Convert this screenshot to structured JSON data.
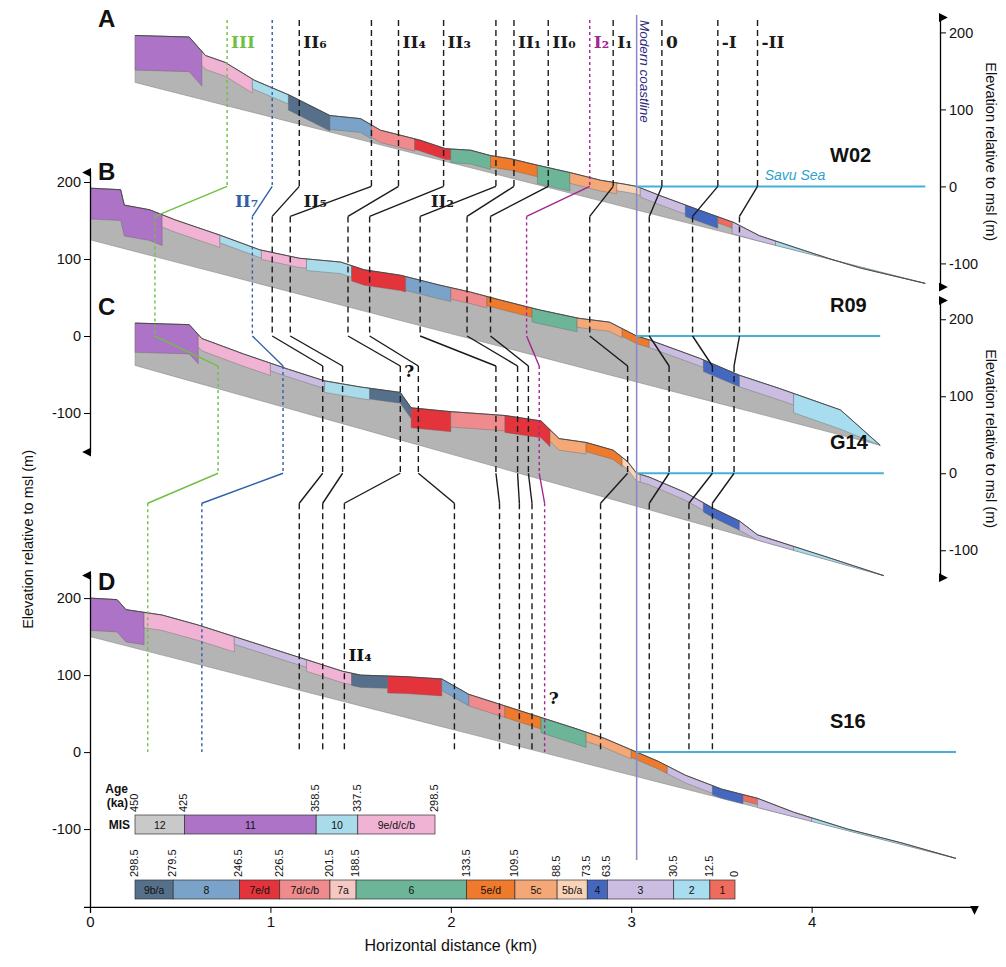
{
  "chart_data": {
    "type": "cross_section",
    "x_label": "Horizontal distance (km)",
    "xlim": [
      0,
      4.9
    ],
    "xticks": [
      0,
      1,
      2,
      3,
      4
    ],
    "y_label": "Elevation relative to msl (m)",
    "sea_level": 0,
    "sea_label": "Savu Sea",
    "coastline": {
      "label": "Modern coastline",
      "x": 3.03
    },
    "profiles": [
      {
        "letter": "A",
        "name": "W02",
        "axis": "right",
        "ylim": [
          -130,
          220
        ],
        "yticks": [
          -100,
          0,
          100,
          200
        ],
        "surface": {
          "x": [
            0.25,
            0.55,
            0.64,
            0.75,
            0.91,
            1.11,
            1.33,
            1.5,
            1.61,
            1.83,
            1.97,
            2.11,
            2.22,
            2.33,
            2.49,
            2.66,
            2.83,
            2.96,
            3.03,
            3.16,
            3.38,
            3.57,
            3.71,
            3.93,
            4.1,
            4.27,
            4.63
          ],
          "y": [
            196,
            194,
            170,
            161,
            138,
            118,
            92,
            88,
            73,
            60,
            49,
            47,
            40,
            36,
            27,
            18,
            8,
            3,
            0,
            -12,
            -31,
            -47,
            -64,
            -81,
            -94,
            -106,
            -126
          ]
        },
        "base": {
          "x": [
            0.25,
            4.63
          ],
          "y": [
            135,
            -126
          ]
        },
        "units": [
          {
            "stage": "11",
            "x0": 0.25,
            "x1": 0.62,
            "depth": 45
          },
          {
            "stage": "9e/d/c/b",
            "x0": 0.62,
            "x1": 0.9,
            "depth": 18
          },
          {
            "stage": "10",
            "x0": 0.9,
            "x1": 1.1,
            "depth": 12
          },
          {
            "stage": "9b/a",
            "x0": 1.1,
            "x1": 1.33,
            "depth": 20
          },
          {
            "stage": "8",
            "x0": 1.33,
            "x1": 1.56,
            "depth": 18
          },
          {
            "stage": "7d/c/b",
            "x0": 1.56,
            "x1": 1.8,
            "depth": 16
          },
          {
            "stage": "7e/d",
            "x0": 1.8,
            "x1": 2.0,
            "depth": 14
          },
          {
            "stage": "6",
            "x0": 2.0,
            "x1": 2.22,
            "depth": 18
          },
          {
            "stage": "5e/d",
            "x0": 2.22,
            "x1": 2.48,
            "depth": 15
          },
          {
            "stage": "6",
            "x0": 2.48,
            "x1": 2.66,
            "depth": 24
          },
          {
            "stage": "5c",
            "x0": 2.66,
            "x1": 2.92,
            "depth": 14
          },
          {
            "stage": "5b/a",
            "x0": 2.92,
            "x1": 3.05,
            "depth": 10
          },
          {
            "stage": "3",
            "x0": 3.05,
            "x1": 3.3,
            "depth": 12
          },
          {
            "stage": "4",
            "x0": 3.3,
            "x1": 3.48,
            "depth": 15
          },
          {
            "stage": "1",
            "x0": 3.48,
            "x1": 3.56,
            "depth": 8
          },
          {
            "stage": "3",
            "x0": 3.56,
            "x1": 3.8,
            "depth": 15
          },
          {
            "stage": "2",
            "x0": 3.8,
            "x1": 4.63,
            "depth": 22
          }
        ]
      },
      {
        "letter": "B",
        "name": "R09",
        "axis": "left",
        "ylim": [
          -150,
          213
        ],
        "yticks": [
          -100,
          0,
          100,
          200
        ],
        "surface": {
          "x": [
            0,
            0.17,
            0.19,
            0.33,
            0.47,
            0.72,
            0.94,
            1.16,
            1.39,
            1.52,
            1.72,
            1.94,
            2.11,
            2.27,
            2.49,
            2.71,
            2.88,
            3.03,
            3.1,
            3.38,
            3.6,
            3.82,
            4.16,
            4.38
          ],
          "y": [
            192,
            190,
            170,
            164,
            151,
            131,
            112,
            101,
            96,
            86,
            79,
            66,
            57,
            47,
            34,
            23,
            18,
            0,
            -5,
            -29,
            -51,
            -68,
            -96,
            -142
          ]
        },
        "base": {
          "x": [
            0,
            4.38
          ],
          "y": [
            125,
            -142
          ]
        },
        "units": [
          {
            "stage": "11",
            "x0": 0,
            "x1": 0.4,
            "depth": 40
          },
          {
            "stage": "9e/d/c/b",
            "x0": 0.4,
            "x1": 0.72,
            "depth": 16
          },
          {
            "stage": "10",
            "x0": 0.72,
            "x1": 0.95,
            "depth": 10
          },
          {
            "stage": "9e/d/c/b",
            "x0": 0.95,
            "x1": 1.2,
            "depth": 12
          },
          {
            "stage": "10",
            "x0": 1.2,
            "x1": 1.45,
            "depth": 15
          },
          {
            "stage": "7e/d",
            "x0": 1.45,
            "x1": 1.75,
            "depth": 20
          },
          {
            "stage": "8",
            "x0": 1.75,
            "x1": 2.0,
            "depth": 18
          },
          {
            "stage": "7d/c/b",
            "x0": 2.0,
            "x1": 2.2,
            "depth": 15
          },
          {
            "stage": "5e/d",
            "x0": 2.2,
            "x1": 2.45,
            "depth": 12
          },
          {
            "stage": "6",
            "x0": 2.45,
            "x1": 2.7,
            "depth": 18
          },
          {
            "stage": "5c",
            "x0": 2.7,
            "x1": 2.95,
            "depth": 12
          },
          {
            "stage": "5e/d",
            "x0": 2.95,
            "x1": 3.1,
            "depth": 10
          },
          {
            "stage": "3",
            "x0": 3.1,
            "x1": 3.4,
            "depth": 10
          },
          {
            "stage": "4",
            "x0": 3.4,
            "x1": 3.6,
            "depth": 15
          },
          {
            "stage": "3",
            "x0": 3.6,
            "x1": 3.9,
            "depth": 15
          },
          {
            "stage": "2",
            "x0": 3.9,
            "x1": 4.38,
            "depth": 25
          }
        ]
      },
      {
        "letter": "C",
        "name": "G14",
        "axis": "right",
        "ylim": [
          -135,
          225
        ],
        "yticks": [
          -100,
          0,
          100,
          200
        ],
        "surface": {
          "x": [
            0.25,
            0.55,
            0.62,
            0.85,
            1.1,
            1.3,
            1.5,
            1.72,
            1.78,
            2.0,
            2.3,
            2.5,
            2.6,
            2.75,
            2.9,
            2.98,
            3.03,
            3.1,
            3.3,
            3.45,
            3.6,
            3.7,
            3.9,
            4.1,
            4.4
          ],
          "y": [
            195,
            193,
            175,
            155,
            135,
            120,
            112,
            105,
            85,
            80,
            75,
            68,
            45,
            40,
            30,
            15,
            0,
            -5,
            -25,
            -45,
            -62,
            -80,
            -95,
            -110,
            -133
          ]
        },
        "base": {
          "x": [
            0.25,
            4.4
          ],
          "y": [
            140,
            -133
          ]
        },
        "units": [
          {
            "stage": "11",
            "x0": 0.25,
            "x1": 0.6,
            "depth": 38
          },
          {
            "stage": "9e/d/c/b",
            "x0": 0.6,
            "x1": 1.0,
            "depth": 16
          },
          {
            "stage": "3",
            "x0": 1.0,
            "x1": 1.3,
            "depth": 10
          },
          {
            "stage": "10",
            "x0": 1.3,
            "x1": 1.55,
            "depth": 15
          },
          {
            "stage": "9b/a",
            "x0": 1.55,
            "x1": 1.78,
            "depth": 14
          },
          {
            "stage": "7e/d",
            "x0": 1.78,
            "x1": 2.0,
            "depth": 26
          },
          {
            "stage": "7d/c/b",
            "x0": 2.0,
            "x1": 2.3,
            "depth": 20
          },
          {
            "stage": "7e/d",
            "x0": 2.3,
            "x1": 2.55,
            "depth": 22
          },
          {
            "stage": "5c",
            "x0": 2.55,
            "x1": 2.75,
            "depth": 15
          },
          {
            "stage": "5e/d",
            "x0": 2.75,
            "x1": 2.95,
            "depth": 12
          },
          {
            "stage": "5b/a",
            "x0": 2.95,
            "x1": 3.05,
            "depth": 10
          },
          {
            "stage": "3",
            "x0": 3.05,
            "x1": 3.4,
            "depth": 10
          },
          {
            "stage": "4",
            "x0": 3.4,
            "x1": 3.6,
            "depth": 12
          },
          {
            "stage": "3",
            "x0": 3.6,
            "x1": 3.9,
            "depth": 12
          },
          {
            "stage": "2",
            "x0": 3.9,
            "x1": 4.4,
            "depth": 25
          }
        ]
      },
      {
        "letter": "D",
        "name": "S16",
        "axis": "left",
        "ylim": [
          -201,
          230
        ],
        "yticks": [
          -100,
          0,
          100,
          200
        ],
        "surface": {
          "x": [
            0,
            0.15,
            0.2,
            0.4,
            0.6,
            0.8,
            1.0,
            1.2,
            1.4,
            1.5,
            1.75,
            1.95,
            2.1,
            2.3,
            2.5,
            2.7,
            2.85,
            3.03,
            3.15,
            3.3,
            3.5,
            3.7,
            3.9,
            4.2,
            4.5,
            4.8
          ],
          "y": [
            200,
            198,
            185,
            178,
            165,
            150,
            135,
            120,
            105,
            100,
            98,
            95,
            75,
            60,
            45,
            30,
            18,
            0,
            -12,
            -30,
            -48,
            -60,
            -78,
            -100,
            -118,
            -138
          ]
        },
        "base": {
          "x": [
            0,
            4.8
          ],
          "y": [
            150,
            -138
          ]
        },
        "units": [
          {
            "stage": "11",
            "x0": 0,
            "x1": 0.3,
            "depth": 42
          },
          {
            "stage": "9e/d/c/b",
            "x0": 0.3,
            "x1": 0.8,
            "depth": 20
          },
          {
            "stage": "3",
            "x0": 0.8,
            "x1": 1.2,
            "depth": 10
          },
          {
            "stage": "9e/d/c/b",
            "x0": 1.2,
            "x1": 1.45,
            "depth": 15
          },
          {
            "stage": "9b/a",
            "x0": 1.45,
            "x1": 1.65,
            "depth": 16
          },
          {
            "stage": "7e/d",
            "x0": 1.65,
            "x1": 1.95,
            "depth": 22
          },
          {
            "stage": "8",
            "x0": 1.95,
            "x1": 2.1,
            "depth": 15
          },
          {
            "stage": "7d/c/b",
            "x0": 2.1,
            "x1": 2.3,
            "depth": 15
          },
          {
            "stage": "5e/d",
            "x0": 2.3,
            "x1": 2.5,
            "depth": 15
          },
          {
            "stage": "6",
            "x0": 2.5,
            "x1": 2.75,
            "depth": 20
          },
          {
            "stage": "5c",
            "x0": 2.75,
            "x1": 3.0,
            "depth": 12
          },
          {
            "stage": "5e/d",
            "x0": 3.0,
            "x1": 3.2,
            "depth": 10
          },
          {
            "stage": "3",
            "x0": 3.2,
            "x1": 3.45,
            "depth": 10
          },
          {
            "stage": "4",
            "x0": 3.45,
            "x1": 3.62,
            "depth": 12
          },
          {
            "stage": "1",
            "x0": 3.62,
            "x1": 3.7,
            "depth": 8
          },
          {
            "stage": "3",
            "x0": 3.7,
            "x1": 4.0,
            "depth": 12
          },
          {
            "stage": "2",
            "x0": 4.0,
            "x1": 4.8,
            "depth": 25
          }
        ]
      }
    ],
    "terrace_lines": [
      {
        "name": "III",
        "color": "#6ec043",
        "line_style": "dotted",
        "x": [
          0.76,
          0.36,
          0.71,
          0.32
        ]
      },
      {
        "name": "II₇",
        "color": "#2f5fa8",
        "line_style": "dotted",
        "x": [
          1.01,
          0.9,
          1.07,
          0.62
        ]
      },
      {
        "name": "II₆",
        "color": "#1a1a1a",
        "line_style": "dashed",
        "x": [
          1.16,
          1.01,
          1.29,
          1.16
        ]
      },
      {
        "name": "II₅",
        "color": "#1a1a1a",
        "line_style": "dashed",
        "x": [
          1.56,
          1.11,
          1.4,
          1.29
        ]
      },
      {
        "name": "II₄",
        "color": "#1a1a1a",
        "line_style": "dashed",
        "x": [
          1.71,
          1.43,
          1.72,
          1.41
        ]
      },
      {
        "name": "II₃",
        "color": "#1a1a1a",
        "line_style": "dashed",
        "x": [
          1.96,
          1.55,
          1.82,
          2.02
        ]
      },
      {
        "name": "II₂",
        "color": "#1a1a1a",
        "line_style": "dashed",
        "x": [
          2.25,
          1.83,
          2.25,
          2.27
        ]
      },
      {
        "name": "II₁",
        "color": "#1a1a1a",
        "line_style": "dashed",
        "x": [
          2.35,
          2.09,
          2.37,
          2.38
        ]
      },
      {
        "name": "II₀",
        "color": "#1a1a1a",
        "line_style": "dashed",
        "x": [
          2.54,
          2.22,
          2.43,
          2.45
        ]
      },
      {
        "name": "I₂",
        "color": "#a3268f",
        "line_style": "dotted",
        "x": [
          2.77,
          2.42,
          2.49,
          2.52
        ]
      },
      {
        "name": "I₁",
        "color": "#1a1a1a",
        "line_style": "dashed",
        "x": [
          2.9,
          2.77,
          2.98,
          2.83
        ]
      },
      {
        "name": "0",
        "color": "#1a1a1a",
        "line_style": "dashed",
        "x": [
          3.17,
          3.1,
          3.21,
          3.1
        ]
      },
      {
        "name": "-I",
        "color": "#1a1a1a",
        "line_style": "dashed",
        "x": [
          3.48,
          3.34,
          3.45,
          3.32
        ]
      },
      {
        "name": "-II",
        "color": "#1a1a1a",
        "line_style": "dashed",
        "x": [
          3.7,
          3.6,
          3.57,
          3.45
        ]
      }
    ],
    "annotations": [
      {
        "text": "?",
        "line": "II₄",
        "profile": "G14",
        "y": 125
      },
      {
        "text": "?",
        "line": "I₂",
        "profile": "S16",
        "y": 62
      },
      {
        "text": "II₄",
        "line": "II₄",
        "profile": "S16",
        "y": 118
      }
    ],
    "timescale": {
      "age_label": "Age (ka)",
      "stage_label": "MIS",
      "rows": [
        {
          "ages": [
            450,
            425,
            358.5,
            337.5,
            298.5
          ],
          "stages": [
            {
              "name": "12",
              "color": "#c9c9c9"
            },
            {
              "name": "11",
              "color": "#ad73c6"
            },
            {
              "name": "10",
              "color": "#a9dbea"
            },
            {
              "name": "9e/d/c/b",
              "color": "#f1b3d3"
            }
          ]
        },
        {
          "ages": [
            298.5,
            279.5,
            246.5,
            226.5,
            201.5,
            188.5,
            133.5,
            109.5,
            88.5,
            73.5,
            63.5,
            30.5,
            12.5,
            0
          ],
          "stages": [
            {
              "name": "9b/a",
              "color": "#56708c"
            },
            {
              "name": "8",
              "color": "#7ba3c9"
            },
            {
              "name": "7e/d",
              "color": "#e3343c"
            },
            {
              "name": "7d/c/b",
              "color": "#ef8b8d"
            },
            {
              "name": "7a",
              "color": "#f6c8c4"
            },
            {
              "name": "6",
              "color": "#6db598"
            },
            {
              "name": "5e/d",
              "color": "#ef7a2c"
            },
            {
              "name": "5c",
              "color": "#f5a877"
            },
            {
              "name": "5b/a",
              "color": "#f9d3b8"
            },
            {
              "name": "4",
              "color": "#4468c0"
            },
            {
              "name": "3",
              "color": "#cbbde2"
            },
            {
              "name": "2",
              "color": "#a8dcef"
            },
            {
              "name": "1",
              "color": "#ef6b5d"
            }
          ]
        }
      ]
    }
  }
}
